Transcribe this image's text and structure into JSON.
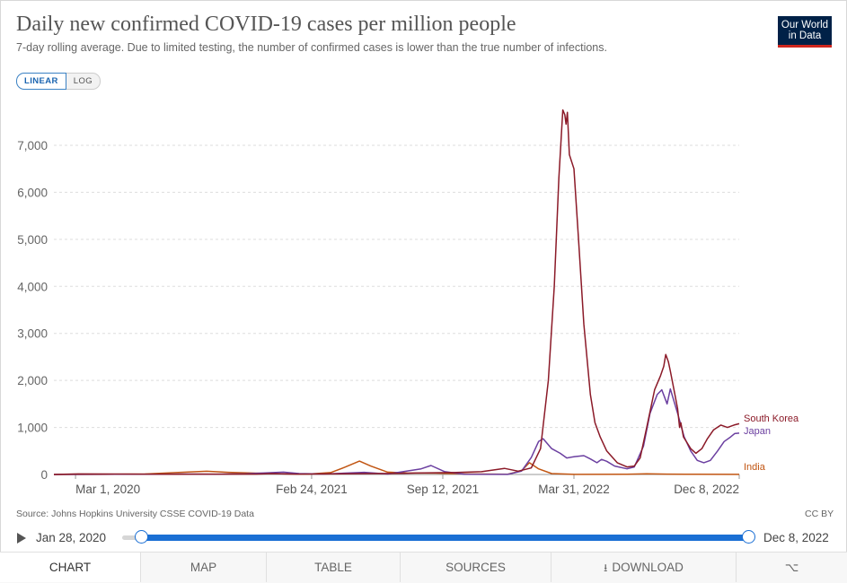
{
  "header": {
    "title": "Daily new confirmed COVID-19 cases per million people",
    "subtitle": "7-day rolling average. Due to limited testing, the number of confirmed cases is lower than the true number of infections.",
    "logo_line1": "Our World",
    "logo_line2": "in Data"
  },
  "scale_toggle": {
    "linear": "LINEAR",
    "log": "LOG",
    "selected": "LINEAR"
  },
  "footer": {
    "source": "Source: Johns Hopkins University CSSE COVID-19 Data",
    "license": "CC BY"
  },
  "timeline": {
    "start": "Jan 28, 2020",
    "end": "Dec 8, 2022"
  },
  "tabs": [
    {
      "label": "CHART",
      "active": true
    },
    {
      "label": "MAP"
    },
    {
      "label": "TABLE"
    },
    {
      "label": "SOURCES"
    },
    {
      "label": "DOWNLOAD",
      "icon": "download-icon"
    },
    {
      "label": "",
      "icon": "share-icon"
    }
  ],
  "chart_data": {
    "type": "line",
    "title": "Daily new confirmed COVID-19 cases per million people",
    "xlabel": "",
    "ylabel": "",
    "x_start": "2020-01-28",
    "x_end": "2022-12-08",
    "xticks": [
      {
        "label": "Mar 1, 2020",
        "date": "2020-03-01"
      },
      {
        "label": "Feb 24, 2021",
        "date": "2021-02-24"
      },
      {
        "label": "Sep 12, 2021",
        "date": "2021-09-12"
      },
      {
        "label": "Mar 31, 2022",
        "date": "2022-03-31"
      },
      {
        "label": "Dec 8, 2022",
        "date": "2022-12-08"
      }
    ],
    "ylim": [
      0,
      7800
    ],
    "yticks": [
      {
        "value": 0,
        "label": "0"
      },
      {
        "value": 1000,
        "label": "1,000"
      },
      {
        "value": 2000,
        "label": "2,000"
      },
      {
        "value": 3000,
        "label": "3,000"
      },
      {
        "value": 4000,
        "label": "4,000"
      },
      {
        "value": 5000,
        "label": "5,000"
      },
      {
        "value": 6000,
        "label": "6,000"
      },
      {
        "value": 7000,
        "label": "7,000"
      }
    ],
    "grid": true,
    "series": [
      {
        "name": "South Korea",
        "color": "#8b1a28",
        "points": [
          [
            "2020-01-28",
            0
          ],
          [
            "2020-03-05",
            12
          ],
          [
            "2020-08-01",
            3
          ],
          [
            "2020-08-28",
            8
          ],
          [
            "2020-12-01",
            8
          ],
          [
            "2020-12-25",
            20
          ],
          [
            "2021-02-01",
            8
          ],
          [
            "2021-07-15",
            25
          ],
          [
            "2021-08-01",
            30
          ],
          [
            "2021-09-25",
            40
          ],
          [
            "2021-11-10",
            60
          ],
          [
            "2021-12-15",
            130
          ],
          [
            "2022-01-05",
            70
          ],
          [
            "2022-01-25",
            140
          ],
          [
            "2022-02-08",
            550
          ],
          [
            "2022-02-20",
            2000
          ],
          [
            "2022-03-01",
            4000
          ],
          [
            "2022-03-08",
            6300
          ],
          [
            "2022-03-14",
            7750
          ],
          [
            "2022-03-17",
            7650
          ],
          [
            "2022-03-19",
            7450
          ],
          [
            "2022-03-21",
            7700
          ],
          [
            "2022-03-24",
            6800
          ],
          [
            "2022-03-31",
            6500
          ],
          [
            "2022-04-07",
            5000
          ],
          [
            "2022-04-15",
            3200
          ],
          [
            "2022-04-25",
            1700
          ],
          [
            "2022-05-02",
            1100
          ],
          [
            "2022-05-10",
            800
          ],
          [
            "2022-05-20",
            500
          ],
          [
            "2022-06-05",
            250
          ],
          [
            "2022-06-20",
            160
          ],
          [
            "2022-07-01",
            180
          ],
          [
            "2022-07-10",
            350
          ],
          [
            "2022-07-20",
            1000
          ],
          [
            "2022-08-01",
            1800
          ],
          [
            "2022-08-10",
            2100
          ],
          [
            "2022-08-15",
            2300
          ],
          [
            "2022-08-18",
            2550
          ],
          [
            "2022-08-22",
            2400
          ],
          [
            "2022-08-25",
            2200
          ],
          [
            "2022-09-01",
            1700
          ],
          [
            "2022-09-05",
            1400
          ],
          [
            "2022-09-08",
            1000
          ],
          [
            "2022-09-10",
            1100
          ],
          [
            "2022-09-14",
            800
          ],
          [
            "2022-09-25",
            550
          ],
          [
            "2022-10-03",
            450
          ],
          [
            "2022-10-12",
            550
          ],
          [
            "2022-10-20",
            750
          ],
          [
            "2022-10-30",
            950
          ],
          [
            "2022-11-10",
            1050
          ],
          [
            "2022-11-20",
            1000
          ],
          [
            "2022-11-30",
            1050
          ],
          [
            "2022-12-08",
            1080
          ]
        ]
      },
      {
        "name": "Japan",
        "color": "#6b3fa0",
        "points": [
          [
            "2020-01-28",
            0
          ],
          [
            "2020-04-15",
            5
          ],
          [
            "2020-07-01",
            3
          ],
          [
            "2020-08-10",
            10
          ],
          [
            "2020-10-01",
            4
          ],
          [
            "2020-11-15",
            15
          ],
          [
            "2021-01-12",
            50
          ],
          [
            "2021-02-05",
            20
          ],
          [
            "2021-03-15",
            10
          ],
          [
            "2021-05-15",
            45
          ],
          [
            "2021-06-20",
            10
          ],
          [
            "2021-08-10",
            120
          ],
          [
            "2021-08-25",
            190
          ],
          [
            "2021-09-15",
            60
          ],
          [
            "2021-10-15",
            5
          ],
          [
            "2021-12-20",
            2
          ],
          [
            "2022-01-10",
            70
          ],
          [
            "2022-01-25",
            360
          ],
          [
            "2022-02-05",
            700
          ],
          [
            "2022-02-12",
            760
          ],
          [
            "2022-02-25",
            550
          ],
          [
            "2022-03-10",
            450
          ],
          [
            "2022-03-20",
            350
          ],
          [
            "2022-04-01",
            380
          ],
          [
            "2022-04-15",
            400
          ],
          [
            "2022-04-25",
            330
          ],
          [
            "2022-05-05",
            250
          ],
          [
            "2022-05-12",
            320
          ],
          [
            "2022-05-20",
            280
          ],
          [
            "2022-06-01",
            180
          ],
          [
            "2022-06-20",
            120
          ],
          [
            "2022-07-01",
            160
          ],
          [
            "2022-07-15",
            600
          ],
          [
            "2022-07-25",
            1300
          ],
          [
            "2022-08-05",
            1700
          ],
          [
            "2022-08-12",
            1800
          ],
          [
            "2022-08-20",
            1500
          ],
          [
            "2022-08-25",
            1820
          ],
          [
            "2022-09-05",
            1300
          ],
          [
            "2022-09-15",
            800
          ],
          [
            "2022-09-25",
            500
          ],
          [
            "2022-10-05",
            300
          ],
          [
            "2022-10-15",
            250
          ],
          [
            "2022-10-25",
            300
          ],
          [
            "2022-11-05",
            500
          ],
          [
            "2022-11-15",
            700
          ],
          [
            "2022-11-25",
            800
          ],
          [
            "2022-12-01",
            870
          ],
          [
            "2022-12-08",
            880
          ]
        ]
      },
      {
        "name": "India",
        "color": "#c15512",
        "points": [
          [
            "2020-01-28",
            0
          ],
          [
            "2020-04-15",
            1
          ],
          [
            "2020-06-15",
            10
          ],
          [
            "2020-08-01",
            40
          ],
          [
            "2020-09-17",
            68
          ],
          [
            "2020-10-20",
            45
          ],
          [
            "2020-12-01",
            28
          ],
          [
            "2021-01-15",
            12
          ],
          [
            "2021-02-20",
            9
          ],
          [
            "2021-03-25",
            40
          ],
          [
            "2021-04-15",
            150
          ],
          [
            "2021-05-08",
            285
          ],
          [
            "2021-05-25",
            180
          ],
          [
            "2021-06-20",
            50
          ],
          [
            "2021-07-20",
            30
          ],
          [
            "2021-09-01",
            28
          ],
          [
            "2021-10-15",
            12
          ],
          [
            "2021-12-20",
            5
          ],
          [
            "2022-01-10",
            80
          ],
          [
            "2022-01-22",
            250
          ],
          [
            "2022-02-05",
            120
          ],
          [
            "2022-02-25",
            20
          ],
          [
            "2022-04-01",
            1
          ],
          [
            "2022-06-20",
            6
          ],
          [
            "2022-07-20",
            14
          ],
          [
            "2022-08-20",
            8
          ],
          [
            "2022-10-01",
            3
          ],
          [
            "2022-12-08",
            1
          ]
        ]
      }
    ]
  }
}
